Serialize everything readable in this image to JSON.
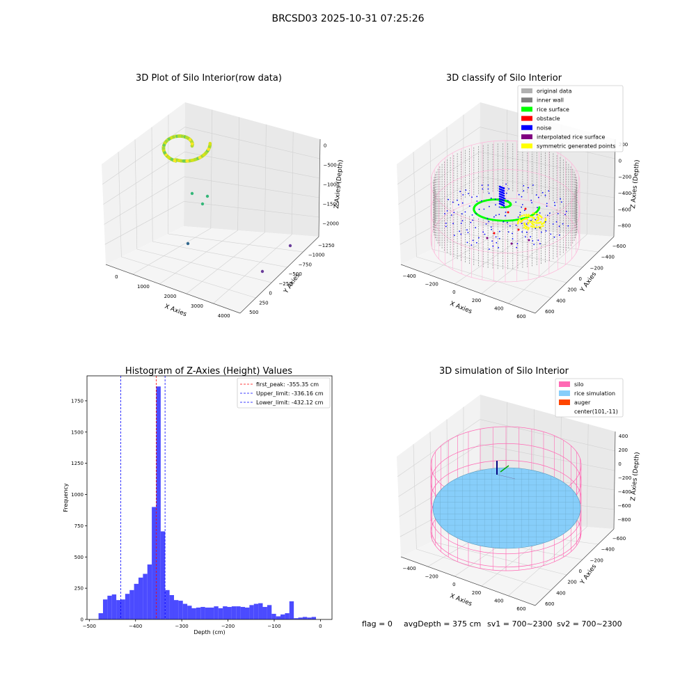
{
  "figure": {
    "suptitle": "BRCSD03 2025-10-31 07:25:26",
    "footer": {
      "flag": "flag = 0",
      "avg": "avgDepth = 375 cm",
      "sv1": "sv1 = 700~2300",
      "sv2": "sv2 = 700~2300"
    }
  },
  "chart_data": [
    {
      "type": "scatter",
      "projection": "3d",
      "title": "3D Plot of Silo Interior(row data)",
      "xlabel": "X Axies",
      "ylabel": "Y Axies",
      "zlabel": "Z Axies (Depth)",
      "xticks": [
        "0",
        "1000",
        "2000",
        "3000",
        "4000"
      ],
      "yticks": [
        "500",
        "250",
        "0",
        "−250",
        "−500",
        "−750",
        "−1000",
        "−1250"
      ],
      "zticks": [
        "0",
        "−500",
        "−1000",
        "−1500",
        "−2000"
      ],
      "color_map": "viridis",
      "outlier_points": [
        {
          "x": 300,
          "y": 450,
          "z": -1300
        },
        {
          "x": 400,
          "y": 300,
          "z": -1500
        },
        {
          "x": 500,
          "y": 450,
          "z": -1400
        },
        {
          "x": 900,
          "y": -200,
          "z": -2000
        },
        {
          "x": 3900,
          "y": -300,
          "z": -1900
        },
        {
          "x": 3800,
          "y": -1100,
          "z": -2100
        }
      ],
      "main_cluster": {
        "x": [
          -300,
          700
        ],
        "y": [
          -500,
          500
        ],
        "z": [
          -350,
          -600
        ]
      }
    },
    {
      "type": "scatter",
      "projection": "3d",
      "title": "3D classify of Silo Interior",
      "xlabel": "X Axies",
      "ylabel": "Y Axies",
      "zlabel": "Z Axies (Depth)",
      "xticks": [
        "−400",
        "−200",
        "0",
        "200",
        "400",
        "600"
      ],
      "yticks": [
        "600",
        "400",
        "200",
        "0",
        "−200",
        "−400",
        "−600"
      ],
      "zticks": [
        "200",
        "0",
        "−200",
        "−400",
        "−600",
        "−800"
      ],
      "legend_position": "top-right",
      "legend": [
        {
          "label": "original data",
          "color": "#b0b0b0"
        },
        {
          "label": "inner wall",
          "color": "#808080"
        },
        {
          "label": "rice surface",
          "color": "#00ff00"
        },
        {
          "label": "obstacle",
          "color": "#ff0000"
        },
        {
          "label": "noise",
          "color": "#0000ff"
        },
        {
          "label": "interpolated rice surface",
          "color": "#800080"
        },
        {
          "label": "symmetric generated points",
          "color": "#ffff00"
        }
      ]
    },
    {
      "type": "bar",
      "title": "Histogram of Z-Axies (Height) Values",
      "xlabel": "Depth (cm)",
      "ylabel": "Frequency",
      "xlim": [
        -505,
        25
      ],
      "ylim": [
        0,
        1950
      ],
      "xticks": [
        -500,
        -400,
        -300,
        -200,
        -100,
        0
      ],
      "yticks": [
        0,
        250,
        500,
        750,
        1000,
        1250,
        1500,
        1750
      ],
      "bar_color": "#4b4bff",
      "bin_start": -480,
      "bin_width": 9.6,
      "values": [
        50,
        160,
        190,
        200,
        155,
        160,
        205,
        235,
        285,
        335,
        365,
        440,
        900,
        1865,
        705,
        235,
        195,
        155,
        150,
        125,
        110,
        90,
        95,
        100,
        95,
        95,
        105,
        90,
        105,
        100,
        105,
        105,
        100,
        95,
        115,
        125,
        130,
        100,
        115,
        45,
        25,
        40,
        50,
        145,
        10,
        15,
        20,
        15,
        20
      ],
      "reference_lines": [
        {
          "label": "first_peak: -355.35 cm",
          "x": -355.35,
          "color": "#ff0000"
        },
        {
          "label": "Upper_limit: -336.16 cm",
          "x": -336.16,
          "color": "#0000ff"
        },
        {
          "label": "Lower_limit: -432.12 cm",
          "x": -432.12,
          "color": "#0000ff"
        }
      ],
      "legend_position": "top-right"
    },
    {
      "type": "surface",
      "projection": "3d",
      "title": "3D simulation of Silo Interior",
      "xlabel": "X Axies",
      "ylabel": "Y Axies",
      "zlabel": "Z Axies (Depth)",
      "xticks": [
        "−400",
        "−200",
        "0",
        "200",
        "400",
        "600"
      ],
      "yticks": [
        "600",
        "400",
        "200",
        "0",
        "−200",
        "−400",
        "−600"
      ],
      "zticks": [
        "400",
        "200",
        "0",
        "−200",
        "−400",
        "−600",
        "−800"
      ],
      "legend_position": "top-right",
      "legend": [
        {
          "label": "silo",
          "color": "#ff69b4"
        },
        {
          "label": "rice simulation",
          "color": "#87cefa"
        },
        {
          "label": "auger",
          "color": "#ff4500"
        },
        {
          "label": "center(101,-11)",
          "color": ""
        }
      ]
    }
  ]
}
